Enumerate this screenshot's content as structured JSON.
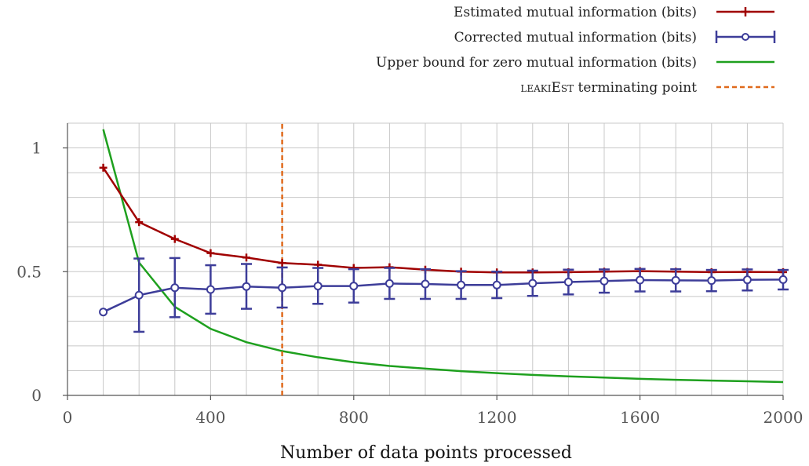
{
  "chart_data": {
    "type": "line",
    "title": "",
    "xlabel": "Number of data points processed",
    "ylabel": "",
    "xlim": [
      0,
      2000
    ],
    "ylim": [
      0,
      1.1
    ],
    "xticks": [
      "0",
      "400",
      "800",
      "1200",
      "1600",
      "2000"
    ],
    "yticks": [
      "0",
      "0.5",
      "1"
    ],
    "grid": true,
    "legend_position": "top-right",
    "series": [
      {
        "name": "Estimated mutual information (bits)",
        "color": "#a00000",
        "marker": "plus",
        "x": [
          100,
          200,
          300,
          400,
          500,
          600,
          700,
          800,
          900,
          1000,
          1100,
          1200,
          1300,
          1400,
          1500,
          1600,
          1700,
          1800,
          1900,
          2000
        ],
        "y": [
          0.92,
          0.7,
          0.632,
          0.575,
          0.557,
          0.535,
          0.528,
          0.515,
          0.518,
          0.508,
          0.5,
          0.497,
          0.497,
          0.498,
          0.5,
          0.502,
          0.5,
          0.498,
          0.499,
          0.498
        ]
      },
      {
        "name": "Corrected mutual information (bits)",
        "color": "#3d3d99",
        "marker": "circle",
        "x": [
          100,
          200,
          300,
          400,
          500,
          600,
          700,
          800,
          900,
          1000,
          1100,
          1200,
          1300,
          1400,
          1500,
          1600,
          1700,
          1800,
          1900,
          2000
        ],
        "y": [
          0.337,
          0.405,
          0.435,
          0.428,
          0.44,
          0.435,
          0.442,
          0.442,
          0.452,
          0.45,
          0.446,
          0.446,
          0.453,
          0.458,
          0.462,
          0.466,
          0.465,
          0.464,
          0.467,
          0.468
        ],
        "error_low": [
          null,
          0.257,
          0.316,
          0.33,
          0.35,
          0.355,
          0.37,
          0.375,
          0.39,
          0.39,
          0.39,
          0.393,
          0.402,
          0.408,
          0.415,
          0.42,
          0.42,
          0.421,
          0.424,
          0.428
        ],
        "error_high": [
          null,
          0.553,
          0.555,
          0.526,
          0.531,
          0.517,
          0.515,
          0.51,
          0.515,
          0.51,
          0.502,
          0.5,
          0.504,
          0.508,
          0.509,
          0.511,
          0.51,
          0.507,
          0.509,
          0.507
        ]
      },
      {
        "name": "Upper bound for zero mutual information (bits)",
        "color": "#1ea01e",
        "marker": "none",
        "x": [
          100,
          200,
          300,
          400,
          500,
          600,
          700,
          800,
          900,
          1000,
          1100,
          1200,
          1300,
          1400,
          1500,
          1600,
          1700,
          1800,
          1900,
          2000
        ],
        "y": [
          1.075,
          0.537,
          0.358,
          0.269,
          0.215,
          0.179,
          0.154,
          0.134,
          0.119,
          0.108,
          0.098,
          0.09,
          0.083,
          0.077,
          0.072,
          0.067,
          0.063,
          0.06,
          0.057,
          0.054
        ]
      },
      {
        "name": "LEAKIEST terminating point",
        "name_display": "leakiEst",
        "name_suffix": " terminating point",
        "color": "#e06a1c",
        "marker": "none",
        "style": "dashed-vertical",
        "x": [
          600,
          600
        ],
        "y": [
          0,
          1.1
        ]
      }
    ]
  }
}
